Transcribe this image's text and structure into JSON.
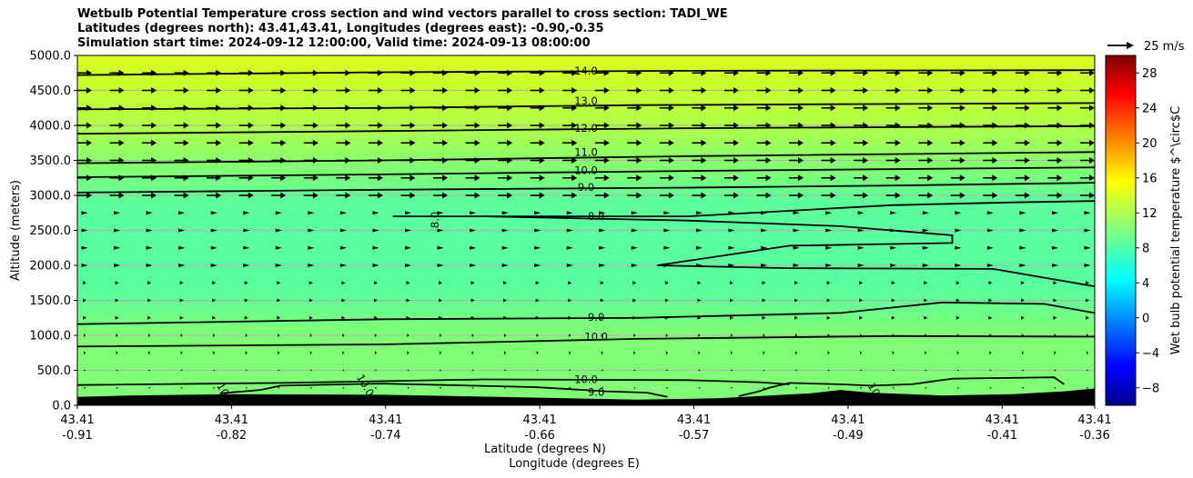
{
  "title_lines": [
    "Wetbulb Potential Temperature cross section and wind vectors parallel to cross section: TADI_WE",
    "Latitudes (degrees north): 43.41,43.41, Longitudes (degrees east): -0.90,-0.35",
    "Simulation start time: 2024-09-12 12:00:00, Valid time: 2024-09-13 08:00:00"
  ],
  "chart_data": {
    "type": "heatmap",
    "subtype": "vertical cross section with contours and wind vectors",
    "ylabel": "Altitude (meters)",
    "xlabel_lines": [
      "Latitude (degrees N)",
      "Longitude (degrees E)"
    ],
    "ylim": [
      0,
      5000
    ],
    "y_ticks": [
      "0.0",
      "500.0",
      "1000.0",
      "1500.0",
      "2000.0",
      "2500.0",
      "3000.0",
      "3500.0",
      "4000.0",
      "4500.0",
      "5000.0"
    ],
    "x_ticks": [
      {
        "lat": "43.41",
        "lon": "-0.91"
      },
      {
        "lat": "43.41",
        "lon": "-0.82"
      },
      {
        "lat": "43.41",
        "lon": "-0.74"
      },
      {
        "lat": "43.41",
        "lon": "-0.66"
      },
      {
        "lat": "43.41",
        "lon": "-0.57"
      },
      {
        "lat": "43.41",
        "lon": "-0.49"
      },
      {
        "lat": "43.41",
        "lon": "-0.41"
      },
      {
        "lat": "43.41",
        "lon": "-0.36"
      }
    ],
    "grid": "horizontal",
    "colorbar": {
      "label": "Wet bulb potential temperature $^\\circ$C",
      "range": [
        -10,
        30
      ],
      "ticks": [
        "−8",
        "−4",
        "0",
        "4",
        "8",
        "12",
        "16",
        "20",
        "24",
        "28"
      ],
      "colormap": "jet"
    },
    "contour_labels": [
      {
        "text": "14.0",
        "alt": 4780
      },
      {
        "text": "13.0",
        "alt": 4350
      },
      {
        "text": "12.0",
        "alt": 3960
      },
      {
        "text": "11.0",
        "alt": 3620
      },
      {
        "text": "10.0",
        "alt": 3360
      },
      {
        "text": "9.0",
        "alt": 3120
      },
      {
        "text": "8.0",
        "alt": 2650
      },
      {
        "text": "8.0",
        "alt": 2700
      },
      {
        "text": "9.0",
        "alt": 1260
      },
      {
        "text": "10.0",
        "alt": 980
      },
      {
        "text": "10.0",
        "alt": 370
      },
      {
        "text": "9.0",
        "alt": 190
      },
      {
        "text": "10",
        "alt": 200
      },
      {
        "text": "10.0",
        "alt": 260
      },
      {
        "text": "10",
        "alt": 200
      }
    ],
    "quiver_key": {
      "label": "25 m/s",
      "speed": 25
    }
  }
}
